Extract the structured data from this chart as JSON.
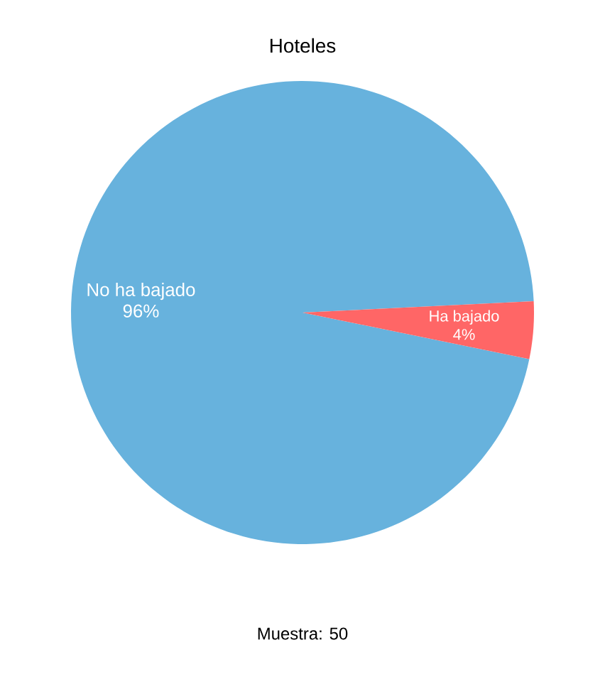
{
  "chart_data": {
    "type": "pie",
    "title": "Hoteles",
    "categories": [
      "No ha bajado",
      "Ha bajado"
    ],
    "values": [
      96,
      4
    ],
    "value_labels": [
      "96%",
      "4%"
    ],
    "colors": [
      "#67b2dd",
      "#ff6666"
    ],
    "annotations": [
      "Muestra: 50"
    ]
  }
}
